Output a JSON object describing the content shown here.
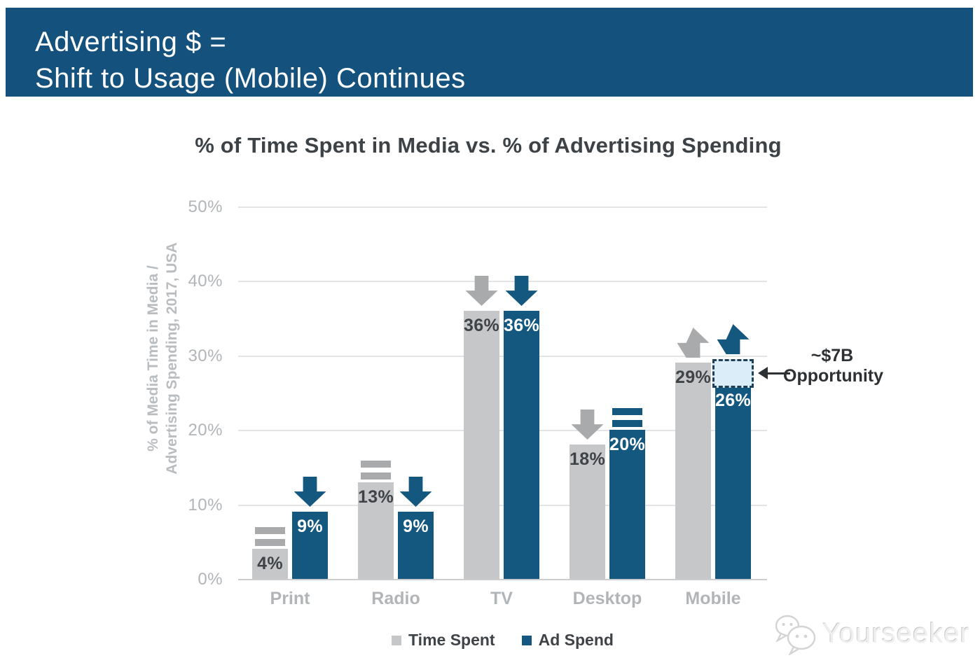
{
  "banner": {
    "line1": "Advertising $ =",
    "line2": "Shift to Usage (Mobile) Continues",
    "bg_color": "#14527d"
  },
  "chart_data": {
    "type": "bar",
    "title": "% of Time Spent in Media vs. % of Advertising Spending",
    "ylabel_line1": "% of Media Time in Media /",
    "ylabel_line2": "Advertising Spending, 2017, USA",
    "categories": [
      "Print",
      "Radio",
      "TV",
      "Desktop",
      "Mobile"
    ],
    "series": [
      {
        "name": "Time Spent",
        "bar_color": "#c6c7c9",
        "indicator_color": "#a8aaac",
        "label_color": "#3f4347",
        "values": [
          4,
          13,
          36,
          18,
          29
        ],
        "trends": [
          "equal",
          "equal",
          "down",
          "down",
          "up"
        ]
      },
      {
        "name": "Ad Spend",
        "bar_color": "#15587f",
        "indicator_color": "#15587f",
        "label_color": "#ffffff",
        "values": [
          9,
          9,
          36,
          20,
          26
        ],
        "trends": [
          "down",
          "down",
          "down",
          "equal",
          "up"
        ]
      }
    ],
    "yticks": [
      "0%",
      "10%",
      "20%",
      "30%",
      "40%",
      "50%"
    ],
    "ylim": [
      0,
      50
    ],
    "grid": true,
    "legend_position": "bottom",
    "annotation": {
      "line1": "~$7B",
      "line2": "Opportunity",
      "target_category": "Mobile",
      "target_series": "Ad Spend",
      "box_bottom_value": 26,
      "box_top_value": 29.5,
      "box_fill": "#daedf8",
      "box_border": "#1e4059"
    }
  },
  "watermark": {
    "text": "Yourseeker"
  }
}
